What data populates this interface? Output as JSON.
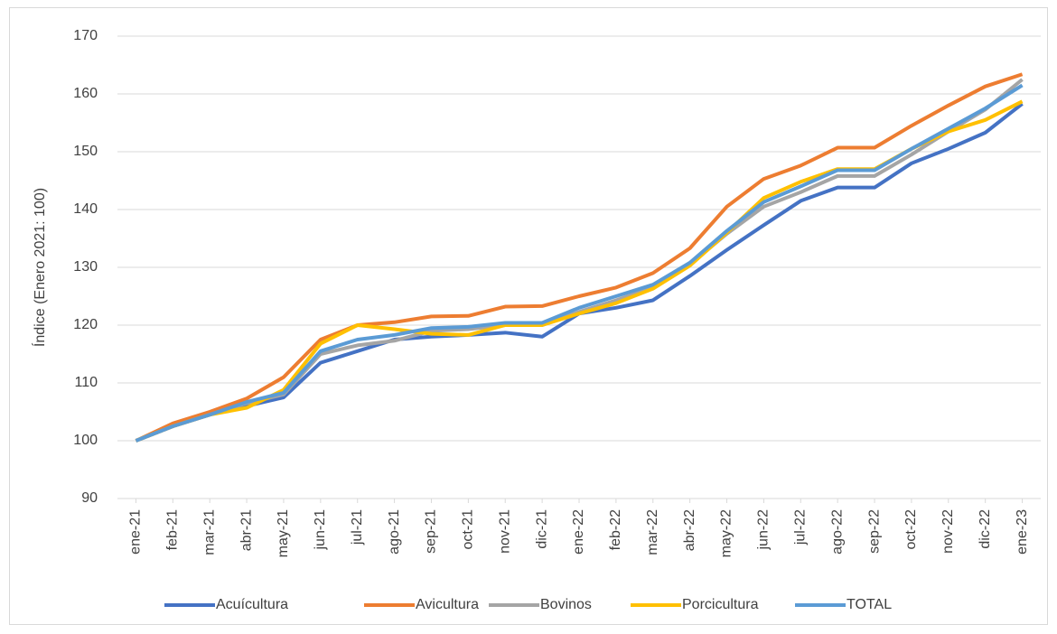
{
  "chart_data": {
    "type": "line",
    "y_label": "Índice (Enero 2021: 100)",
    "categories": [
      "ene-21",
      "feb-21",
      "mar-21",
      "abr-21",
      "may-21",
      "jun-21",
      "jul-21",
      "ago-21",
      "sep-21",
      "oct-21",
      "nov-21",
      "dic-21",
      "ene-22",
      "feb-22",
      "mar-22",
      "abr-22",
      "may-22",
      "jun-22",
      "jul-22",
      "ago-22",
      "sep-22",
      "oct-22",
      "nov-22",
      "dic-22",
      "ene-23"
    ],
    "series": [
      {
        "name": "Acuícultura",
        "color": "#4472c4",
        "values": [
          100,
          102.5,
          104.5,
          106,
          107.5,
          113.5,
          115.5,
          117.5,
          118,
          118.3,
          118.7,
          118,
          122,
          123,
          124.3,
          128.5,
          133,
          137.3,
          141.5,
          143.8,
          143.8,
          148,
          150.5,
          153.3,
          158.3
        ]
      },
      {
        "name": "Avicultura",
        "color": "#ed7d31",
        "values": [
          100,
          103,
          105,
          107.3,
          111,
          117.5,
          120,
          120.5,
          121.5,
          121.6,
          123.2,
          123.3,
          125,
          126.5,
          129,
          133.3,
          140.5,
          145.3,
          147.6,
          150.7,
          150.7,
          154.5,
          158,
          161.3,
          163.4
        ]
      },
      {
        "name": "Bovinos",
        "color": "#a5a5a5",
        "values": [
          100,
          102.5,
          104.5,
          106.5,
          108,
          115,
          116.5,
          117.3,
          119,
          119.3,
          120,
          120,
          122.3,
          124.3,
          126.5,
          130.5,
          135.8,
          140.5,
          143,
          145.8,
          145.8,
          149.5,
          153.5,
          157.3,
          162.5
        ]
      },
      {
        "name": "Porcicultura",
        "color": "#ffc000",
        "values": [
          100,
          102.5,
          104.5,
          105.7,
          108.8,
          116.8,
          120,
          119.3,
          118.5,
          118.3,
          120,
          120,
          122,
          123.8,
          126.3,
          130.3,
          136,
          142,
          144.8,
          147,
          147,
          150.5,
          153.5,
          155.5,
          158.7
        ]
      },
      {
        "name": "TOTAL",
        "color": "#5b9bd5",
        "values": [
          100,
          102.5,
          104.5,
          106.7,
          108.3,
          115.5,
          117.5,
          118.3,
          119.5,
          119.7,
          120.4,
          120.4,
          123,
          125,
          127,
          130.8,
          136.3,
          141.3,
          144,
          146.8,
          146.8,
          150.5,
          154,
          157.5,
          161.5
        ]
      }
    ],
    "ylim": [
      90,
      170
    ],
    "yticks": [
      90,
      100,
      110,
      120,
      130,
      140,
      150,
      160,
      170
    ],
    "grid": true,
    "legend": "bottom"
  }
}
